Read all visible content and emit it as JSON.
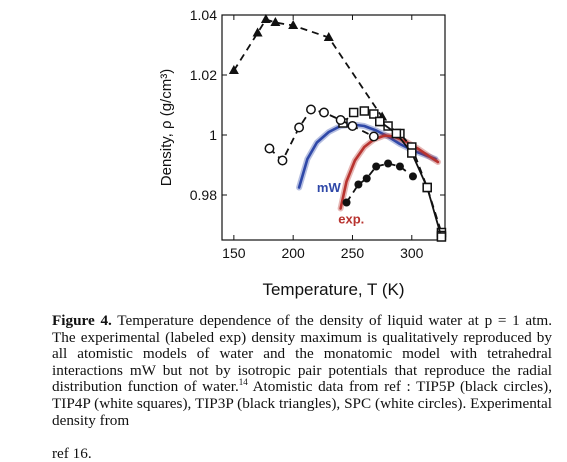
{
  "chart_data": {
    "type": "scatter",
    "xlabel": "Temperature, T (K)",
    "ylabel": "Density, ρ (g/cm³)",
    "xlim": [
      140,
      328
    ],
    "ylim": [
      0.965,
      1.04
    ],
    "x_ticks": [
      150,
      200,
      250,
      300
    ],
    "y_ticks": [
      0.98,
      1,
      1.02,
      1.04
    ],
    "y_tick_labels": [
      "0.98",
      "1",
      "1.02",
      "1.04"
    ],
    "x_tick_labels": [
      "150",
      "200",
      "250",
      "300"
    ],
    "grid": false,
    "series": [
      {
        "marker": "triangle-filled",
        "line": "dashed",
        "color": "#111111",
        "points": [
          [
            150,
            1.0215
          ],
          [
            170,
            1.034
          ],
          [
            177,
            1.0385
          ],
          [
            185,
            1.0375
          ],
          [
            200,
            1.0365
          ],
          [
            230,
            1.0325
          ],
          [
            275,
            1.006
          ]
        ]
      },
      {
        "marker": "square-open",
        "line": "dashed",
        "color": "#111111",
        "points": [
          [
            242,
            1.004
          ],
          [
            251,
            1.0075
          ],
          [
            260,
            1.008
          ],
          [
            268,
            1.007
          ],
          [
            273,
            1.0045
          ],
          [
            280,
            1.003
          ],
          [
            290,
            1.0005
          ],
          [
            300,
            0.996
          ],
          [
            313,
            0.9825
          ],
          [
            325,
            0.9675
          ],
          [
            325,
            0.9665
          ]
        ]
      },
      {
        "marker": "square-open",
        "line": "solid",
        "color": "#111111",
        "points": [
          [
            273,
            1.0045
          ],
          [
            287,
            1.0005
          ],
          [
            300,
            0.994
          ],
          [
            313,
            0.9825
          ],
          [
            325,
            0.966
          ]
        ]
      },
      {
        "marker": "circle-open",
        "line": "dashed",
        "color": "#111111",
        "points": [
          [
            180,
            0.9955
          ],
          [
            191,
            0.9915
          ],
          [
            205,
            1.0025
          ],
          [
            215,
            1.0085
          ],
          [
            226,
            1.0075
          ],
          [
            240,
            1.005
          ],
          [
            250,
            1.003
          ],
          [
            268,
            0.9995
          ]
        ]
      },
      {
        "marker": "circle-filled",
        "line": "dashed",
        "color": "#111111",
        "points": [
          [
            245,
            0.9775
          ],
          [
            255,
            0.9835
          ],
          [
            262,
            0.9855
          ],
          [
            270,
            0.9895
          ],
          [
            280,
            0.9905
          ],
          [
            290,
            0.9895
          ],
          [
            301,
            0.9862
          ]
        ]
      },
      {
        "marker": "none",
        "line": "solid",
        "color": "#2f48a8",
        "name": "mW",
        "points": [
          [
            205,
            0.9825
          ],
          [
            212,
            0.992
          ],
          [
            220,
            0.9975
          ],
          [
            230,
            1.001
          ],
          [
            240,
            1.003
          ],
          [
            250,
            1.0035
          ],
          [
            260,
            1.003
          ],
          [
            270,
            1.0015
          ],
          [
            280,
            0.9995
          ],
          [
            290,
            0.997
          ],
          [
            300,
            0.995
          ],
          [
            310,
            0.9935
          ],
          [
            320,
            0.992
          ]
        ]
      },
      {
        "marker": "none",
        "line": "solid",
        "color": "#b8332f",
        "name": "exp.",
        "points": [
          [
            240,
            0.9755
          ],
          [
            245,
            0.9845
          ],
          [
            252,
            0.9915
          ],
          [
            260,
            0.996
          ],
          [
            268,
            0.9985
          ],
          [
            277,
            0.9998
          ],
          [
            285,
            0.9995
          ],
          [
            295,
            0.9978
          ],
          [
            305,
            0.9955
          ],
          [
            315,
            0.9928
          ],
          [
            322,
            0.991
          ]
        ]
      }
    ],
    "annotations": [
      {
        "text": "mW",
        "x": 220,
        "y": 0.981,
        "color": "#2f48a8"
      },
      {
        "text": "exp.",
        "x": 238,
        "y": 0.9705,
        "color": "#b8332f"
      }
    ]
  },
  "caption": {
    "label": "Figure 4.",
    "lines": [
      "Temperature dependence of the density of liquid water at p",
      "= 1 atm. The experimental (labeled exp) density maximum is",
      "qualitatively reproduced by all atomistic models of water and the",
      "monatomic model with tetrahedral interactions mW but not by isotropic",
      "pair potentials that reproduce the radial distribution function of water.",
      "Atomistic data from ref : TIP5P (black circles), TIP4P (white squares),",
      "TIP3P (black triangles), SPC (white circles). Experimental density from"
    ],
    "ref_mark": "14",
    "cut_line": "ref 16."
  }
}
